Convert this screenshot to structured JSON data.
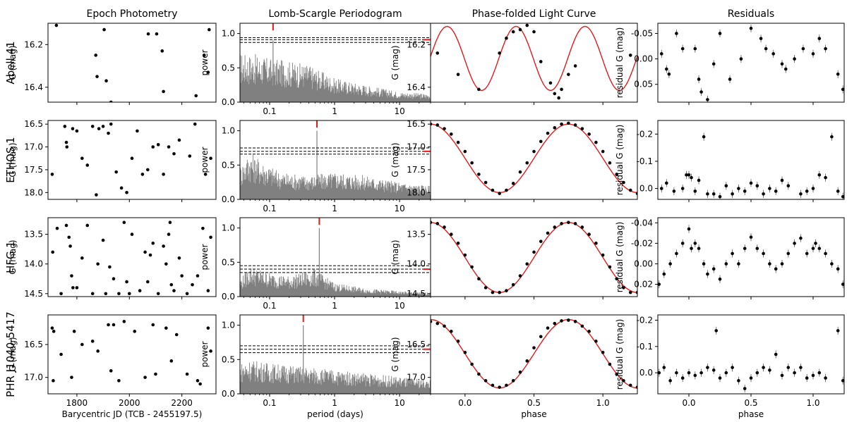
{
  "columns": [
    "Epoch Photometry",
    "Lomb-Scargle Periodogram",
    "Phase-folded Light Curve",
    "Residuals"
  ],
  "rows": [
    "Abell 41",
    "ETHOS 1",
    "HFG 1",
    "PHR J1040-5417"
  ],
  "xlabels": {
    "epoch": "Barycentric JD (TCB - 2455197.5)",
    "period": "period (days)",
    "phase": "phase"
  },
  "ylabels": {
    "mag": "G (mag)",
    "power": "power",
    "residual": "residual G (mag)"
  },
  "colors": {
    "model": "#e31a1c",
    "points": "#000000",
    "spectrum": "#808080"
  },
  "chart_data": [
    {
      "panel": "Abell 41 / Epoch Photometry",
      "type": "scatter",
      "xlim": [
        1690,
        2330
      ],
      "xticks": [
        1800,
        2000,
        2200
      ],
      "ylim": [
        16.47,
        16.1
      ],
      "yticks": [
        16.2,
        16.4
      ],
      "x": [
        1722,
        1872,
        1877,
        1904,
        1912,
        1930,
        2072,
        2104,
        2125,
        2130,
        2254,
        2285,
        2300,
        2304
      ],
      "y": [
        16.11,
        16.25,
        16.35,
        16.13,
        16.37,
        16.47,
        16.15,
        16.15,
        16.23,
        16.42,
        16.44,
        16.25,
        16.33,
        16.13
      ]
    },
    {
      "panel": "Abell 41 / Lomb-Scargle Periodogram",
      "type": "area",
      "x_scale": "log",
      "xlim": [
        0.035,
        30
      ],
      "xticks": [
        0.1,
        1,
        10
      ],
      "ylim": [
        0,
        1.15
      ],
      "yticks": [
        0.0,
        0.5,
        1.0
      ],
      "peak_period": 0.113,
      "peak_power": 0.9,
      "fap_levels": [
        0.87,
        0.91,
        0.94
      ],
      "envelope": [
        [
          0.035,
          0.72
        ],
        [
          0.06,
          0.7
        ],
        [
          0.1,
          0.64
        ],
        [
          0.2,
          0.6
        ],
        [
          0.4,
          0.55
        ],
        [
          1,
          0.35
        ],
        [
          3,
          0.25
        ],
        [
          10,
          0.15
        ],
        [
          30,
          0.12
        ]
      ]
    },
    {
      "panel": "Abell 41 / Phase-folded Light Curve",
      "type": "line",
      "x_scale": "linear",
      "xlim": [
        -0.25,
        1.25
      ],
      "xticks": [
        0.0,
        0.5,
        1.0
      ],
      "ylim": [
        16.47,
        16.1
      ],
      "yticks": [
        16.2,
        16.4
      ],
      "model": {
        "mean": 16.265,
        "amplitude": 0.15,
        "min_phase": 0.12,
        "cycles": 2
      },
      "x": [
        -0.2,
        -0.05,
        0.1,
        0.25,
        0.3,
        0.35,
        0.4,
        0.45,
        0.5,
        0.55,
        0.62,
        0.65,
        0.68,
        0.7,
        0.75,
        0.8,
        1.2
      ],
      "y": [
        16.24,
        16.34,
        16.41,
        16.24,
        16.17,
        16.14,
        16.13,
        16.11,
        16.14,
        16.28,
        16.38,
        16.43,
        16.45,
        16.41,
        16.34,
        16.3,
        16.25
      ]
    },
    {
      "panel": "Abell 41 / Residuals",
      "type": "scatter",
      "xlim": [
        -0.25,
        1.25
      ],
      "xticks": [
        0.0,
        0.5,
        1.0
      ],
      "ylim": [
        0.085,
        -0.07
      ],
      "yticks": [
        -0.05,
        0.0,
        0.05
      ],
      "x": [
        -0.22,
        -0.18,
        -0.16,
        -0.1,
        -0.05,
        0.05,
        0.08,
        0.1,
        0.15,
        0.2,
        0.25,
        0.33,
        0.42,
        0.5,
        0.58,
        0.62,
        0.68,
        0.75,
        0.78,
        0.85,
        0.92,
        1.0,
        1.05,
        1.1,
        1.2,
        1.24
      ],
      "y": [
        -0.01,
        0.02,
        0.03,
        -0.05,
        -0.02,
        -0.02,
        0.04,
        0.065,
        0.08,
        0.01,
        -0.05,
        0.04,
        0.0,
        -0.06,
        -0.04,
        -0.02,
        -0.01,
        0.01,
        0.02,
        0.0,
        -0.02,
        -0.01,
        -0.04,
        -0.02,
        0.03,
        0.06
      ]
    },
    {
      "panel": "ETHOS 1 / Epoch Photometry",
      "type": "scatter",
      "xlim": [
        1690,
        2330
      ],
      "xticks": [
        1800,
        2000,
        2200
      ],
      "ylim": [
        18.15,
        16.42
      ],
      "yticks": [
        16.5,
        17.0,
        17.5,
        18.0
      ],
      "x": [
        1706,
        1754,
        1762,
        1784,
        1800,
        1820,
        1840,
        1860,
        1874,
        1884,
        1900,
        1920,
        1930,
        1950,
        1970,
        1990,
        2010,
        2030,
        2050,
        2070,
        2090,
        2110,
        2130,
        2150,
        2170,
        2190,
        2230,
        2250,
        2290,
        2310,
        1760
      ],
      "y": [
        17.6,
        16.55,
        17.0,
        16.6,
        16.65,
        17.25,
        17.4,
        16.55,
        18.05,
        16.6,
        16.55,
        16.7,
        16.5,
        17.55,
        17.9,
        18.0,
        17.25,
        16.65,
        17.6,
        17.5,
        17.0,
        16.95,
        17.6,
        17.0,
        17.15,
        16.85,
        17.2,
        16.5,
        17.6,
        17.25,
        16.9
      ]
    },
    {
      "panel": "ETHOS 1 / Lomb-Scargle Periodogram",
      "type": "area",
      "x_scale": "log",
      "xlim": [
        0.035,
        30
      ],
      "xticks": [
        0.1,
        1,
        10
      ],
      "ylim": [
        0,
        1.15
      ],
      "yticks": [
        0.0,
        0.5,
        1.0
      ],
      "peak_period": 0.535,
      "peak_power": 1.0,
      "fap_levels": [
        0.66,
        0.7,
        0.75
      ],
      "envelope": [
        [
          0.035,
          0.5
        ],
        [
          0.05,
          0.7
        ],
        [
          0.08,
          0.55
        ],
        [
          0.15,
          0.4
        ],
        [
          0.4,
          0.35
        ],
        [
          1,
          0.4
        ],
        [
          3,
          0.35
        ],
        [
          10,
          0.25
        ],
        [
          30,
          0.2
        ]
      ]
    },
    {
      "panel": "ETHOS 1 / Phase-folded Light Curve",
      "type": "line",
      "x_scale": "linear",
      "xlim": [
        -0.25,
        1.25
      ],
      "xticks": [
        0.0,
        0.5,
        1.0
      ],
      "ylim": [
        18.15,
        16.42
      ],
      "yticks": [
        16.5,
        17.0,
        17.5,
        18.0
      ],
      "model": {
        "mean": 17.25,
        "amplitude": 0.75,
        "min_phase": 0.25,
        "cycles": 1
      },
      "x": [
        -0.25,
        -0.2,
        -0.15,
        -0.1,
        -0.05,
        0.0,
        0.05,
        0.1,
        0.15,
        0.2,
        0.25,
        0.3,
        0.35,
        0.4,
        0.45,
        0.5,
        0.55,
        0.6,
        0.65,
        0.7,
        0.75,
        0.8,
        0.85,
        0.9,
        0.95,
        1.0,
        1.05,
        1.1,
        1.15,
        1.2,
        1.25
      ],
      "y": [
        16.5,
        16.52,
        16.6,
        16.72,
        16.9,
        17.1,
        17.35,
        17.6,
        17.78,
        17.95,
        18.02,
        17.95,
        17.8,
        17.55,
        17.35,
        17.1,
        16.88,
        16.7,
        16.58,
        16.5,
        16.48,
        16.52,
        16.6,
        16.72,
        16.9,
        17.1,
        17.35,
        17.6,
        17.78,
        17.95,
        18.02
      ]
    },
    {
      "panel": "ETHOS 1 / Residuals",
      "type": "scatter",
      "xlim": [
        -0.25,
        1.25
      ],
      "xticks": [
        0.0,
        0.5,
        1.0
      ],
      "ylim": [
        0.04,
        -0.25
      ],
      "yticks": [
        -0.2,
        -0.1,
        0.0
      ],
      "x": [
        -0.22,
        -0.18,
        -0.12,
        -0.05,
        -0.02,
        0.0,
        0.02,
        0.05,
        0.08,
        0.12,
        0.15,
        0.2,
        0.25,
        0.3,
        0.35,
        0.4,
        0.45,
        0.5,
        0.55,
        0.6,
        0.65,
        0.7,
        0.75,
        0.8,
        0.9,
        0.95,
        1.0,
        1.05,
        1.1,
        1.15,
        1.2,
        1.24
      ],
      "y": [
        0.0,
        -0.02,
        0.01,
        0.0,
        -0.05,
        -0.05,
        -0.04,
        0.01,
        -0.03,
        -0.19,
        0.02,
        0.02,
        0.03,
        -0.01,
        0.02,
        0.0,
        0.01,
        -0.02,
        -0.01,
        0.02,
        0.0,
        0.01,
        -0.03,
        -0.01,
        0.02,
        0.01,
        0.0,
        -0.05,
        -0.04,
        -0.19,
        0.01,
        0.03
      ]
    },
    {
      "panel": "HFG 1 / Epoch Photometry",
      "type": "scatter",
      "xlim": [
        1690,
        2330
      ],
      "xticks": [
        1800,
        2000,
        2200
      ],
      "ylim": [
        14.55,
        13.22
      ],
      "yticks": [
        13.5,
        14.0,
        14.5
      ],
      "x": [
        1708,
        1725,
        1740,
        1760,
        1770,
        1775,
        1780,
        1785,
        1800,
        1820,
        1840,
        1860,
        1880,
        1900,
        1910,
        1925,
        1940,
        1960,
        1980,
        1990,
        2000,
        2010,
        2040,
        2060,
        2070,
        2080,
        2090,
        2110,
        2130,
        2140,
        2150,
        2155,
        2160,
        2170,
        2190,
        2200,
        2220,
        2240,
        2260,
        2280,
        2300,
        2310
      ],
      "y": [
        13.8,
        13.4,
        14.5,
        13.35,
        13.55,
        13.7,
        14.2,
        14.4,
        14.4,
        13.9,
        13.35,
        14.5,
        14.0,
        13.6,
        14.5,
        14.05,
        14.25,
        14.5,
        13.3,
        14.3,
        14.5,
        13.5,
        14.45,
        13.8,
        14.3,
        13.85,
        13.65,
        14.5,
        13.7,
        14.0,
        13.5,
        13.3,
        14.35,
        14.45,
        13.9,
        14.2,
        14.5,
        14.35,
        14.2,
        13.4,
        14.45,
        13.55
      ]
    },
    {
      "panel": "HFG 1 / Lomb-Scargle Periodogram",
      "type": "area",
      "x_scale": "log",
      "xlim": [
        0.035,
        30
      ],
      "xticks": [
        0.1,
        1,
        10
      ],
      "ylim": [
        0,
        1.15
      ],
      "yticks": [
        0.0,
        0.5,
        1.0
      ],
      "peak_period": 0.582,
      "peak_power": 1.0,
      "fap_levels": [
        0.35,
        0.4,
        0.45
      ],
      "envelope": [
        [
          0.035,
          0.25
        ],
        [
          0.05,
          0.45
        ],
        [
          0.1,
          0.35
        ],
        [
          0.2,
          0.3
        ],
        [
          0.5,
          0.4
        ],
        [
          1,
          0.2
        ],
        [
          3,
          0.12
        ],
        [
          10,
          0.08
        ],
        [
          30,
          0.06
        ]
      ]
    },
    {
      "panel": "HFG 1 / Phase-folded Light Curve",
      "type": "line",
      "x_scale": "linear",
      "xlim": [
        -0.25,
        1.25
      ],
      "xticks": [
        0.0,
        0.5,
        1.0
      ],
      "ylim": [
        14.55,
        13.22
      ],
      "yticks": [
        13.5,
        14.0,
        14.5
      ],
      "model": {
        "mean": 13.89,
        "amplitude": 0.59,
        "min_phase": 0.25,
        "cycles": 1
      },
      "x": [
        -0.25,
        -0.2,
        -0.15,
        -0.1,
        -0.05,
        0.0,
        0.05,
        0.1,
        0.15,
        0.2,
        0.25,
        0.3,
        0.35,
        0.4,
        0.45,
        0.5,
        0.55,
        0.6,
        0.65,
        0.7,
        0.75,
        0.8,
        0.85,
        0.9,
        0.95,
        1.0,
        1.05,
        1.1,
        1.15,
        1.2,
        1.25
      ],
      "y": [
        13.3,
        13.32,
        13.38,
        13.5,
        13.65,
        13.85,
        14.05,
        14.25,
        14.4,
        14.48,
        14.48,
        14.45,
        14.35,
        14.2,
        14.0,
        13.8,
        13.62,
        13.48,
        13.38,
        13.32,
        13.3,
        13.32,
        13.38,
        13.5,
        13.65,
        13.85,
        14.05,
        14.25,
        14.4,
        14.48,
        14.48
      ]
    },
    {
      "panel": "HFG 1 / Residuals",
      "type": "scatter",
      "xlim": [
        -0.25,
        1.25
      ],
      "xticks": [
        0.0,
        0.5,
        1.0
      ],
      "ylim": [
        0.032,
        -0.045
      ],
      "yticks": [
        -0.04,
        -0.02,
        0.0,
        0.02
      ],
      "x": [
        -0.24,
        -0.2,
        -0.15,
        -0.1,
        -0.05,
        0.0,
        0.02,
        0.05,
        0.08,
        0.12,
        0.15,
        0.2,
        0.25,
        0.3,
        0.35,
        0.4,
        0.45,
        0.5,
        0.55,
        0.6,
        0.65,
        0.7,
        0.75,
        0.8,
        0.85,
        0.9,
        0.95,
        1.0,
        1.02,
        1.05,
        1.1,
        1.15,
        1.2,
        1.24
      ],
      "y": [
        0.02,
        0.01,
        0.0,
        -0.01,
        -0.02,
        -0.034,
        -0.015,
        -0.02,
        -0.015,
        0.0,
        0.01,
        0.005,
        0.015,
        0.0,
        -0.01,
        0.0,
        -0.015,
        -0.026,
        -0.015,
        -0.01,
        0.0,
        0.005,
        0.0,
        -0.01,
        -0.02,
        -0.025,
        -0.01,
        -0.015,
        -0.02,
        -0.015,
        -0.01,
        0.0,
        0.005,
        0.02
      ]
    },
    {
      "panel": "PHR J1040-5417 / Epoch Photometry",
      "type": "scatter",
      "xlim": [
        1690,
        2330
      ],
      "xticks": [
        1800,
        2000,
        2200
      ],
      "ylim": [
        17.25,
        16.05
      ],
      "yticks": [
        16.5,
        17.0
      ],
      "x": [
        1706,
        1710,
        1712,
        1740,
        1780,
        1790,
        1820,
        1860,
        1880,
        1920,
        1930,
        1940,
        1960,
        1980,
        2020,
        2060,
        2090,
        2100,
        2140,
        2160,
        2180,
        2220,
        2260,
        2270,
        2300,
        2310
      ],
      "y": [
        16.25,
        17.05,
        16.3,
        16.65,
        17.0,
        16.3,
        16.5,
        16.45,
        16.6,
        16.2,
        16.9,
        16.2,
        17.05,
        16.15,
        16.3,
        17.0,
        16.2,
        16.95,
        16.25,
        16.75,
        16.35,
        16.95,
        17.05,
        17.1,
        16.25,
        16.6
      ]
    },
    {
      "panel": "PHR J1040-5417 / Lomb-Scargle Periodogram",
      "type": "area",
      "x_scale": "log",
      "xlim": [
        0.035,
        30
      ],
      "xticks": [
        0.1,
        1,
        10
      ],
      "ylim": [
        0,
        1.15
      ],
      "yticks": [
        0.0,
        0.5,
        1.0
      ],
      "peak_period": 0.33,
      "peak_power": 1.0,
      "fap_levels": [
        0.6,
        0.65,
        0.7
      ],
      "envelope": [
        [
          0.035,
          0.45
        ],
        [
          0.05,
          0.5
        ],
        [
          0.1,
          0.45
        ],
        [
          0.3,
          0.4
        ],
        [
          1,
          0.35
        ],
        [
          3,
          0.3
        ],
        [
          10,
          0.25
        ],
        [
          30,
          0.2
        ]
      ]
    },
    {
      "panel": "PHR J1040-5417 / Phase-folded Light Curve",
      "type": "line",
      "x_scale": "linear",
      "xlim": [
        -0.25,
        1.25
      ],
      "xticks": [
        0.0,
        0.5,
        1.0
      ],
      "ylim": [
        17.25,
        16.05
      ],
      "yticks": [
        16.5,
        17.0
      ],
      "model": {
        "mean": 16.64,
        "amplitude": 0.52,
        "min_phase": 0.25,
        "cycles": 1
      },
      "x": [
        -0.25,
        -0.2,
        -0.15,
        -0.1,
        -0.05,
        0.0,
        0.05,
        0.1,
        0.15,
        0.2,
        0.25,
        0.3,
        0.35,
        0.4,
        0.45,
        0.5,
        0.55,
        0.6,
        0.65,
        0.7,
        0.75,
        0.8,
        0.85,
        0.9,
        0.95,
        1.0,
        1.05,
        1.1,
        1.15,
        1.2,
        1.25
      ],
      "y": [
        16.15,
        16.18,
        16.22,
        16.3,
        16.45,
        16.62,
        16.8,
        16.95,
        17.05,
        17.12,
        17.15,
        17.12,
        17.05,
        16.92,
        16.75,
        16.55,
        16.38,
        16.25,
        16.18,
        16.14,
        16.13,
        16.15,
        16.22,
        16.3,
        16.45,
        16.62,
        16.8,
        16.95,
        17.05,
        17.12,
        17.15
      ]
    },
    {
      "panel": "PHR J1040-5417 / Residuals",
      "type": "scatter",
      "xlim": [
        -0.25,
        1.25
      ],
      "xticks": [
        0.0,
        0.5,
        1.0
      ],
      "ylim": [
        0.08,
        -0.22
      ],
      "yticks": [
        -0.2,
        -0.1,
        0.0
      ],
      "x": [
        -0.24,
        -0.2,
        -0.15,
        -0.1,
        -0.05,
        0.0,
        0.05,
        0.1,
        0.15,
        0.2,
        0.22,
        0.25,
        0.3,
        0.35,
        0.4,
        0.45,
        0.5,
        0.55,
        0.6,
        0.65,
        0.7,
        0.75,
        0.8,
        0.85,
        0.9,
        0.95,
        1.0,
        1.05,
        1.1,
        1.2,
        1.24
      ],
      "y": [
        0.0,
        -0.02,
        0.03,
        0.0,
        0.02,
        0.0,
        0.01,
        0.0,
        -0.02,
        -0.01,
        -0.16,
        0.02,
        0.0,
        -0.02,
        0.03,
        0.06,
        0.02,
        0.0,
        -0.02,
        -0.01,
        -0.07,
        0.01,
        -0.02,
        0.0,
        -0.02,
        0.02,
        0.01,
        0.0,
        0.02,
        -0.16,
        0.03
      ]
    }
  ]
}
